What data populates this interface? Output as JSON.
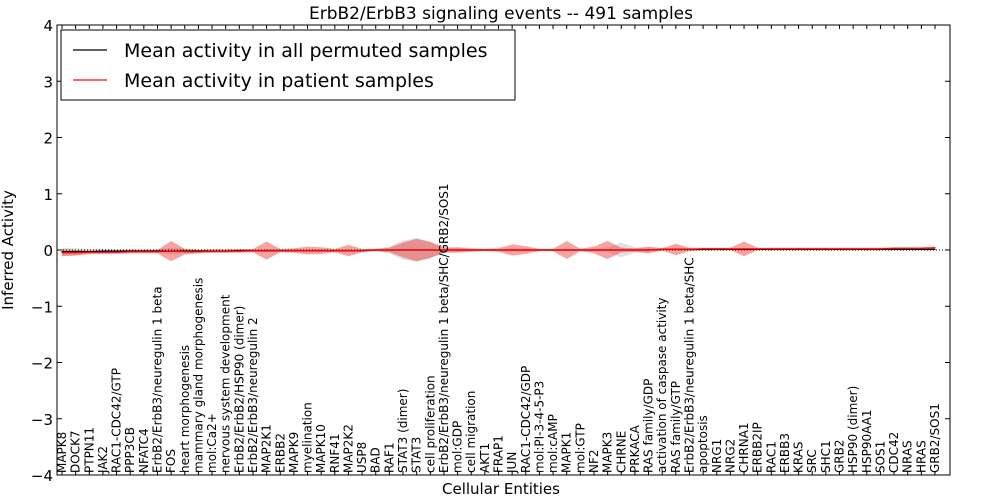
{
  "chart_data": {
    "type": "line",
    "title": "ErbB2/ErbB3 signaling events -- 491 samples",
    "xlabel": "Cellular Entities",
    "ylabel": "Inferred Activity",
    "ylim": [
      -4,
      4
    ],
    "yticks": [
      "4",
      "3",
      "2",
      "1",
      "0",
      "−1",
      "−2",
      "−3",
      "−4"
    ],
    "legend": {
      "position": "top-left",
      "entries": [
        {
          "label": "Mean activity in all permuted samples",
          "color": "#000000"
        },
        {
          "label": "Mean activity in patient samples",
          "color": "#ff0000"
        }
      ]
    },
    "categories": [
      "MAPK8",
      "DOCK7",
      "PTPN11",
      "JAK2",
      "RAC1-CDC42/GTP",
      "PPP3CB",
      "NFATC4",
      "ErbB2/ErbB3/neuregulin 1 beta",
      "FOS",
      "heart morphogenesis",
      "mammary gland morphogenesis",
      "mol:Ca2+",
      "nervous system development",
      "ErbB2/ErbB2/HSP90 (dimer)",
      "ErbB2/ErbB3/neuregulin 2",
      "MAP2K1",
      "ERBB2",
      "MAPK9",
      "myelination",
      "MAPK10",
      "RNF41",
      "MAP2K2",
      "USP8",
      "BAD",
      "RAF1",
      "STAT3 (dimer)",
      "STAT3",
      "cell proliferation",
      "ErbB2/ErbB3/neuregulin 1 beta/SHC/GRB2/SOS1",
      "mol:GDP",
      "cell migration",
      "AKT1",
      "FRAP1",
      "JUN",
      "RAC1-CDC42/GDP",
      "mol:PI-3-4-5-P3",
      "mol:cAMP",
      "MAPK1",
      "mol:GTP",
      "NF2",
      "MAPK3",
      "CHRNE",
      "PRKACA",
      "RAS family/GDP",
      "activation of caspase activity",
      "RAS family/GTP",
      "ErbB2/ErbB3/neuregulin 1 beta/SHC",
      "apoptosis",
      "NRG1",
      "NRG2",
      "CHRNA1",
      "ERBB2IP",
      "RAC1",
      "ERBB3",
      "KRAS",
      "SRC",
      "SHC1",
      "GRB2",
      "HSP90 (dimer)",
      "HSP90AA1",
      "SOS1",
      "CDC42",
      "NRAS",
      "HRAS",
      "GRB2/SOS1"
    ],
    "series": [
      {
        "name": "Mean activity in all permuted samples",
        "color": "#000000",
        "values": [
          -0.03,
          -0.03,
          -0.03,
          -0.02,
          -0.02,
          -0.02,
          -0.02,
          -0.02,
          -0.02,
          -0.02,
          -0.02,
          -0.02,
          -0.02,
          -0.01,
          -0.01,
          -0.01,
          -0.01,
          -0.01,
          -0.01,
          -0.01,
          -0.01,
          -0.01,
          -0.01,
          0.0,
          0.0,
          0.0,
          0.0,
          0.0,
          0.0,
          0.0,
          0.0,
          0.0,
          0.0,
          0.0,
          0.0,
          0.0,
          0.0,
          0.0,
          0.0,
          0.0,
          0.0,
          0.0,
          0.0,
          0.0,
          0.01,
          0.01,
          0.01,
          0.01,
          0.01,
          0.01,
          0.01,
          0.01,
          0.01,
          0.01,
          0.01,
          0.01,
          0.01,
          0.01,
          0.01,
          0.01,
          0.01,
          0.01,
          0.01,
          0.01,
          0.01
        ],
        "band": [
          0.07,
          0.06,
          0.05,
          0.04,
          0.03,
          0.03,
          0.03,
          0.03,
          0.06,
          0.04,
          0.03,
          0.03,
          0.03,
          0.03,
          0.02,
          0.03,
          0.03,
          0.02,
          0.02,
          0.02,
          0.02,
          0.02,
          0.02,
          0.02,
          0.06,
          0.17,
          0.21,
          0.15,
          0.06,
          0.03,
          0.02,
          0.02,
          0.02,
          0.03,
          0.03,
          0.02,
          0.02,
          0.02,
          0.02,
          0.03,
          0.04,
          0.13,
          0.05,
          0.03,
          0.02,
          0.02,
          0.02,
          0.02,
          0.02,
          0.01,
          0.01,
          0.01,
          0.01,
          0.01,
          0.01,
          0.01,
          0.01,
          0.01,
          0.01,
          0.01,
          0.01,
          0.01,
          0.01,
          0.01,
          0.01
        ]
      },
      {
        "name": "Mean activity in patient samples",
        "color": "#ff0000",
        "values": [
          -0.05,
          -0.05,
          -0.04,
          -0.04,
          -0.04,
          -0.03,
          -0.03,
          -0.03,
          -0.02,
          -0.03,
          -0.03,
          -0.02,
          -0.02,
          -0.02,
          -0.01,
          -0.01,
          -0.01,
          -0.01,
          -0.01,
          -0.01,
          -0.01,
          -0.01,
          -0.01,
          0.0,
          0.0,
          0.0,
          0.0,
          0.0,
          0.0,
          0.0,
          0.0,
          0.0,
          0.0,
          0.0,
          0.0,
          0.0,
          0.0,
          0.0,
          0.0,
          0.0,
          0.0,
          0.0,
          0.0,
          0.0,
          0.01,
          0.01,
          0.01,
          0.02,
          0.02,
          0.02,
          0.02,
          0.02,
          0.02,
          0.02,
          0.02,
          0.02,
          0.02,
          0.02,
          0.02,
          0.02,
          0.02,
          0.03,
          0.03,
          0.03,
          0.04
        ],
        "band": [
          0.06,
          0.05,
          0.03,
          0.03,
          0.03,
          0.03,
          0.03,
          0.03,
          0.18,
          0.05,
          0.03,
          0.03,
          0.03,
          0.03,
          0.03,
          0.16,
          0.03,
          0.04,
          0.07,
          0.06,
          0.03,
          0.1,
          0.03,
          0.02,
          0.04,
          0.13,
          0.2,
          0.14,
          0.04,
          0.05,
          0.03,
          0.02,
          0.03,
          0.1,
          0.07,
          0.02,
          0.02,
          0.16,
          0.02,
          0.06,
          0.16,
          0.04,
          0.03,
          0.06,
          0.02,
          0.1,
          0.03,
          0.02,
          0.02,
          0.02,
          0.13,
          0.02,
          0.02,
          0.02,
          0.02,
          0.02,
          0.02,
          0.02,
          0.02,
          0.02,
          0.02,
          0.02,
          0.02,
          0.02,
          0.02
        ]
      }
    ]
  }
}
